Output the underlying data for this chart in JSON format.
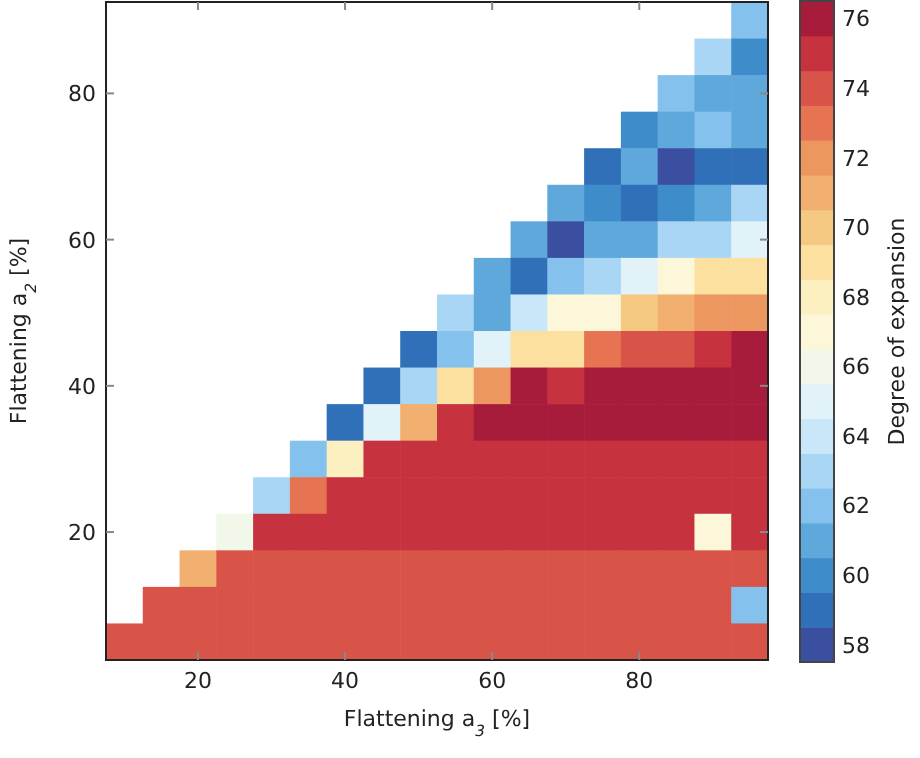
{
  "chart_data": {
    "type": "heatmap",
    "xlabel": "Flattening a$_{3}$ [%]",
    "ylabel": "Flattening a$_{2}$ [%]",
    "clabel": "Degree of expansion",
    "x": [
      10,
      15,
      20,
      25,
      30,
      35,
      40,
      45,
      50,
      55,
      60,
      65,
      70,
      75,
      80,
      85,
      90,
      95
    ],
    "y": [
      90,
      85,
      80,
      75,
      70,
      65,
      60,
      55,
      50,
      45,
      40,
      35,
      30,
      25,
      20,
      15,
      10,
      5
    ],
    "xlim": [
      7.5,
      97.5
    ],
    "ylim": [
      2.5,
      92.5
    ],
    "xticks": [
      20,
      40,
      60,
      80
    ],
    "yticks": [
      20,
      40,
      60,
      80
    ],
    "clim": [
      57.5,
      76.5
    ],
    "cticks": [
      58,
      60,
      62,
      64,
      66,
      68,
      70,
      72,
      74,
      76
    ],
    "colors": [
      "#3b4fa0",
      "#3070b8",
      "#3f8ccb",
      "#5ea8dc",
      "#84c1ec",
      "#a9d6f5",
      "#c9e7f8",
      "#e1f2f9",
      "#f1f8ea",
      "#fcf7d9",
      "#fdf0c0",
      "#fbe0a0",
      "#f6c983",
      "#f1b070",
      "#ec9660",
      "#e67352",
      "#d85449",
      "#c6333f",
      "#a81c3b"
    ],
    "cells": [
      [
        null,
        null,
        null,
        null,
        null,
        null,
        null,
        null,
        null,
        null,
        null,
        null,
        null,
        null,
        null,
        null,
        null,
        62
      ],
      [
        null,
        null,
        null,
        null,
        null,
        null,
        null,
        null,
        null,
        null,
        null,
        null,
        null,
        null,
        null,
        null,
        63,
        60
      ],
      [
        null,
        null,
        null,
        null,
        null,
        null,
        null,
        null,
        null,
        null,
        null,
        null,
        null,
        null,
        null,
        62,
        61,
        61
      ],
      [
        null,
        null,
        null,
        null,
        null,
        null,
        null,
        null,
        null,
        null,
        null,
        null,
        null,
        null,
        60,
        61,
        62,
        61
      ],
      [
        null,
        null,
        null,
        null,
        null,
        null,
        null,
        null,
        null,
        null,
        null,
        null,
        null,
        59,
        61,
        58,
        59,
        59
      ],
      [
        null,
        null,
        null,
        null,
        null,
        null,
        null,
        null,
        null,
        null,
        null,
        null,
        61,
        60,
        59,
        60,
        61,
        63
      ],
      [
        null,
        null,
        null,
        null,
        null,
        null,
        null,
        null,
        null,
        null,
        null,
        61,
        58,
        61,
        61,
        63,
        63,
        65
      ],
      [
        null,
        null,
        null,
        null,
        null,
        null,
        null,
        null,
        null,
        null,
        61,
        59,
        62,
        63,
        65,
        67,
        69,
        69
      ],
      [
        null,
        null,
        null,
        null,
        null,
        null,
        null,
        null,
        null,
        63,
        61,
        64,
        67,
        67,
        70,
        71,
        72,
        72
      ],
      [
        null,
        null,
        null,
        null,
        null,
        null,
        null,
        null,
        59,
        62,
        65,
        69,
        69,
        73,
        74,
        74,
        75,
        76
      ],
      [
        null,
        null,
        null,
        null,
        null,
        null,
        null,
        59,
        63,
        69,
        72,
        76,
        75,
        76,
        76,
        76,
        76,
        76
      ],
      [
        null,
        null,
        null,
        null,
        null,
        null,
        59,
        65,
        71,
        75,
        76,
        76,
        76,
        76,
        76,
        76,
        76,
        76
      ],
      [
        null,
        null,
        null,
        null,
        null,
        62,
        68,
        75,
        75,
        75,
        75,
        75,
        75,
        75,
        75,
        75,
        75,
        75
      ],
      [
        null,
        null,
        null,
        null,
        63,
        73,
        75,
        75,
        75,
        75,
        75,
        75,
        75,
        75,
        75,
        75,
        75,
        75
      ],
      [
        null,
        null,
        null,
        66,
        75,
        75,
        75,
        75,
        75,
        75,
        75,
        75,
        75,
        75,
        75,
        75,
        67,
        75
      ],
      [
        null,
        null,
        71,
        74,
        74,
        74,
        74,
        74,
        74,
        74,
        74,
        74,
        74,
        74,
        74,
        74,
        74,
        74
      ],
      [
        null,
        74,
        74,
        74,
        74,
        74,
        74,
        74,
        74,
        74,
        74,
        74,
        74,
        74,
        74,
        74,
        74,
        62
      ],
      [
        74,
        74,
        74,
        74,
        74,
        74,
        74,
        74,
        74,
        74,
        74,
        74,
        74,
        74,
        74,
        74,
        74,
        74
      ]
    ]
  }
}
